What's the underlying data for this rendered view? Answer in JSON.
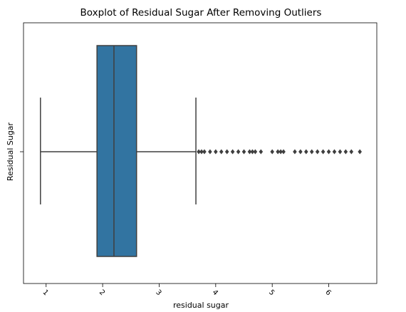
{
  "chart_data": {
    "type": "box",
    "title": "Boxplot of Residual Sugar After Removing Outliers",
    "xlabel": "residual sugar",
    "ylabel": "Residual Sugar",
    "xlim": [
      0.6,
      6.85
    ],
    "x_ticks": [
      1,
      2,
      3,
      4,
      5,
      6
    ],
    "x_tick_labels": [
      "1",
      "2",
      "3",
      "4",
      "5",
      "6"
    ],
    "x_tick_rotation": 45,
    "grid": false,
    "box": {
      "whisker_low": 0.9,
      "q1": 1.9,
      "median": 2.2,
      "q3": 2.6,
      "whisker_high": 3.65
    },
    "outliers": [
      3.7,
      3.75,
      3.8,
      3.9,
      4.0,
      4.1,
      4.2,
      4.3,
      4.4,
      4.5,
      4.6,
      4.65,
      4.7,
      4.8,
      5.0,
      5.1,
      5.15,
      5.2,
      5.4,
      5.5,
      5.6,
      5.7,
      5.8,
      5.9,
      6.0,
      6.1,
      6.2,
      6.3,
      6.4,
      6.55
    ],
    "colors": {
      "box": "#3274a1",
      "line": "#3f3f3f",
      "flier": "#3f3f3f"
    }
  }
}
